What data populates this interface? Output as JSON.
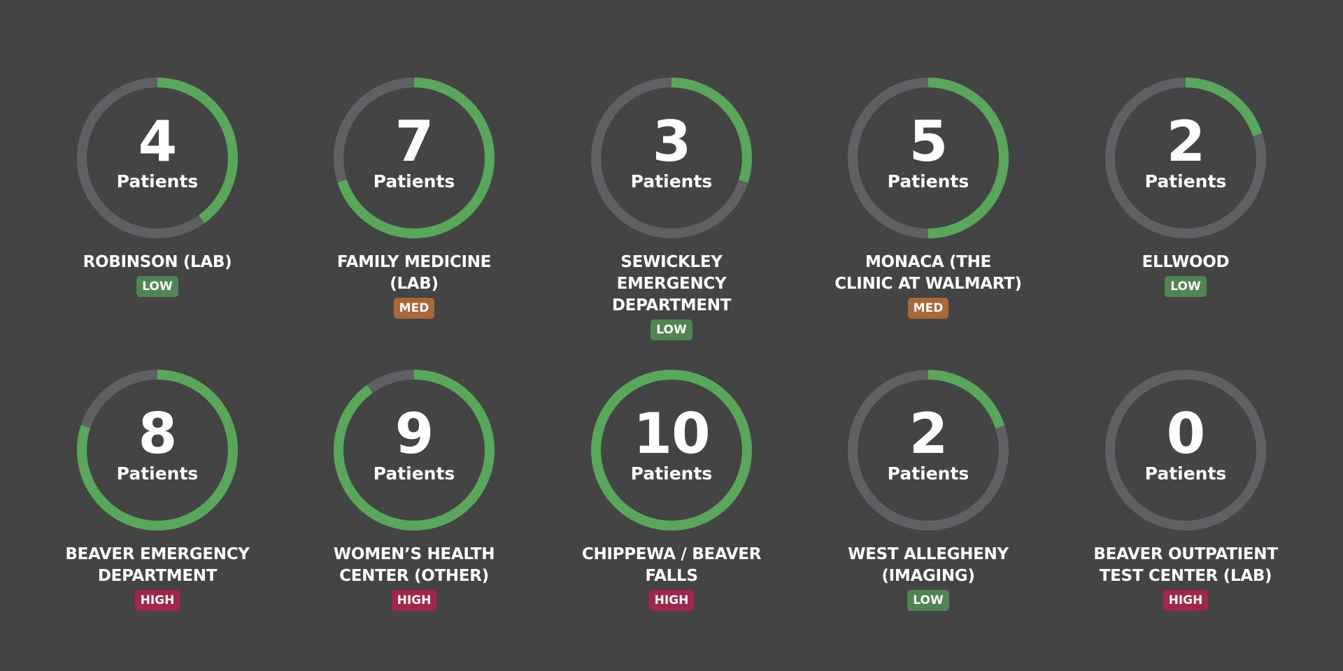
{
  "unit_label": "Patients",
  "max_patients": 10,
  "colors": {
    "background": "#444444",
    "track": "#5f6063",
    "progress": "#58a85a",
    "LOW": "#4e8550",
    "MED": "#a86838",
    "HIGH": "#a3264a"
  },
  "locations": [
    {
      "count": 4,
      "name": "ROBINSON (LAB)",
      "level": "LOW"
    },
    {
      "count": 7,
      "name": "FAMILY MEDICINE (LAB)",
      "level": "MED"
    },
    {
      "count": 3,
      "name": "SEWICKLEY EMERGENCY DEPARTMENT",
      "level": "LOW"
    },
    {
      "count": 5,
      "name": "MONACA (THE CLINIC AT WALMART)",
      "level": "MED"
    },
    {
      "count": 2,
      "name": "ELLWOOD",
      "level": "LOW"
    },
    {
      "count": 8,
      "name": "BEAVER EMERGENCY DEPARTMENT",
      "level": "HIGH"
    },
    {
      "count": 9,
      "name": "WOMEN’S HEALTH CENTER (OTHER)",
      "level": "HIGH"
    },
    {
      "count": 10,
      "name": "CHIPPEWA / BEAVER FALLS",
      "level": "HIGH"
    },
    {
      "count": 2,
      "name": "WEST ALLEGHENY (IMAGING)",
      "level": "LOW"
    },
    {
      "count": 0,
      "name": "BEAVER OUTPATIENT TEST CENTER (LAB)",
      "level": "HIGH"
    }
  ]
}
